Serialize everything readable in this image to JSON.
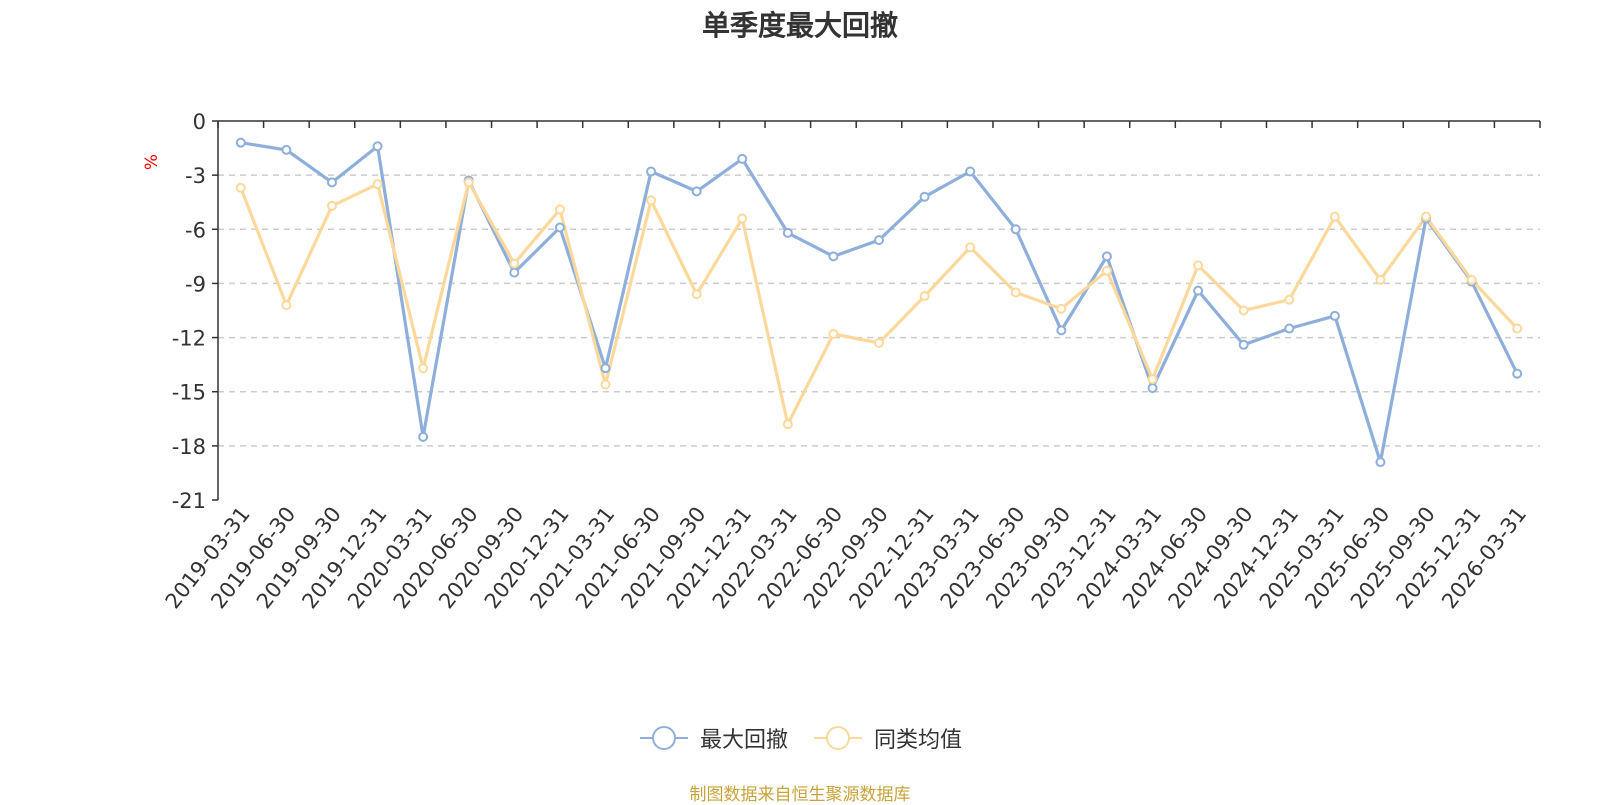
{
  "chart_data": {
    "type": "line",
    "title": "单季度最大回撤",
    "ylabel": "%",
    "xlabel": "",
    "ylim": [
      -21,
      0
    ],
    "yticks": [
      0,
      -3,
      -6,
      -9,
      -12,
      -15,
      -18,
      -21
    ],
    "grid": "horizontal-dashed",
    "legend_position": "bottom-center",
    "categories": [
      "2019-03-31",
      "2019-06-30",
      "2019-09-30",
      "2019-12-31",
      "2020-03-31",
      "2020-06-30",
      "2020-09-30",
      "2020-12-31",
      "2021-03-31",
      "2021-06-30",
      "2021-09-30",
      "2021-12-31",
      "2022-03-31",
      "2022-06-30",
      "2022-09-30",
      "2022-12-31",
      "2023-03-31",
      "2023-06-30",
      "2023-09-30",
      "2023-12-31",
      "2024-03-31",
      "2024-06-30",
      "2024-09-30",
      "2024-12-31",
      "2025-03-31",
      "2025-06-30",
      "2025-09-30",
      "2025-12-31",
      "2026-03-31"
    ],
    "series": [
      {
        "name": "最大回撤",
        "color": "#8eaedb",
        "values": [
          -1.2,
          -1.6,
          -3.4,
          -1.4,
          -17.5,
          -3.3,
          -8.4,
          -5.9,
          -13.7,
          -2.8,
          -3.9,
          -2.1,
          -6.2,
          -7.5,
          -6.6,
          -4.2,
          -2.8,
          -6.0,
          -11.6,
          -7.5,
          -14.8,
          -9.4,
          -12.4,
          -11.5,
          -10.8,
          -18.9,
          -5.4,
          -8.9,
          -14.0
        ]
      },
      {
        "name": "同类均值",
        "color": "#fcd99b",
        "values": [
          -3.7,
          -10.2,
          -4.7,
          -3.5,
          -13.7,
          -3.4,
          -7.9,
          -4.9,
          -14.6,
          -4.4,
          -9.6,
          -5.4,
          -16.8,
          -11.8,
          -12.3,
          -9.7,
          -7.0,
          -9.5,
          -10.4,
          -8.3,
          -14.3,
          -8.0,
          -10.5,
          -9.9,
          -5.3,
          -8.8,
          -5.3,
          -8.8,
          -11.5
        ]
      }
    ]
  },
  "source_text": "制图数据来自恒生聚源数据库",
  "colors": {
    "axis": "#333333",
    "grid": "#cccccc",
    "ylabel": "#ff0000",
    "source": "#c9a33a"
  }
}
